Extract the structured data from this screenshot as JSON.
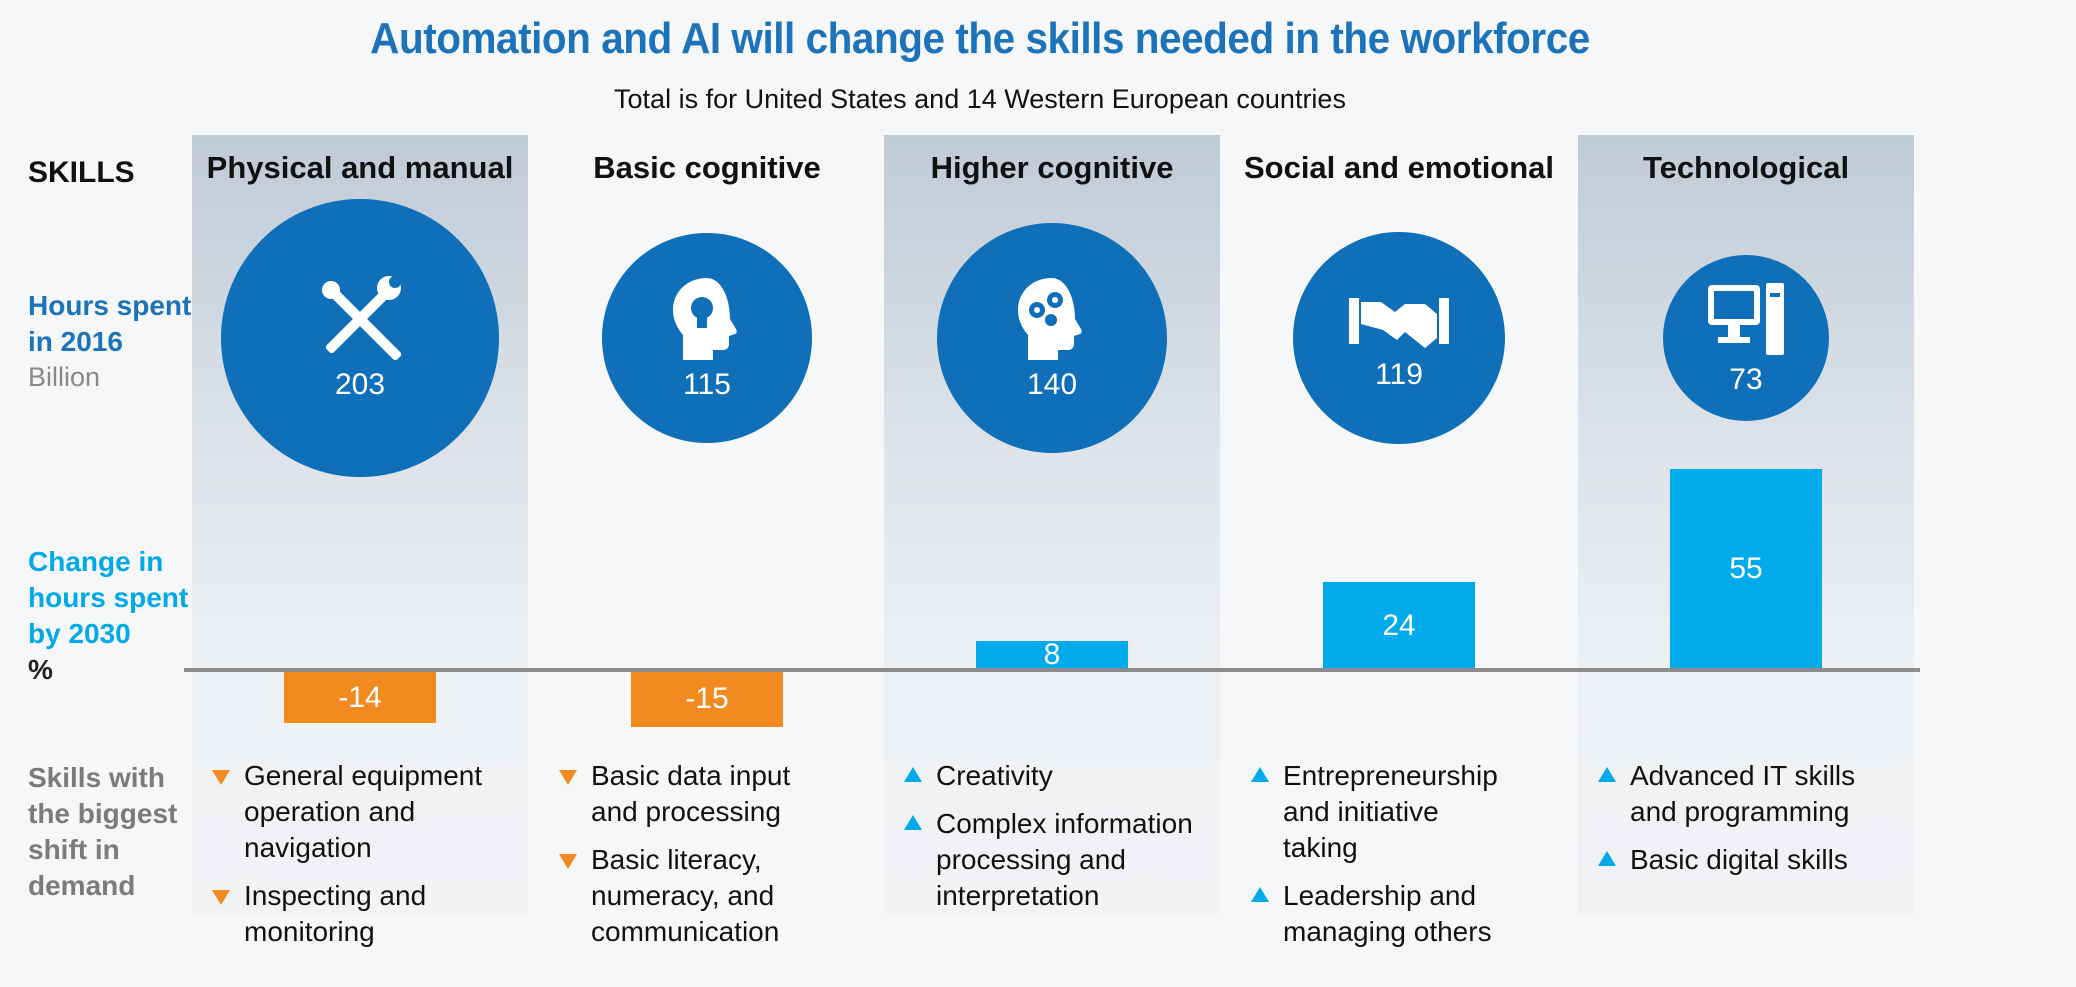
{
  "title": "Automation and AI will change the skills needed in the workforce",
  "subtitle": "Total is for United States and 14 Western European countries",
  "row_labels": {
    "skills": "SKILLS",
    "hours_line1": "Hours spent,",
    "hours_line2": "in 2016",
    "hours_unit": "Billion",
    "change_line1": "Change in",
    "change_line2": "hours spent",
    "change_line3": "by 2030",
    "change_unit": "%",
    "shift_line1": "Skills with",
    "shift_line2": "the biggest",
    "shift_line3": "shift in",
    "shift_line4": "demand"
  },
  "colors": {
    "title": "#1d73b9",
    "circle": "#0f6fb9",
    "positive": "#00aaeb",
    "negative": "#f28a20"
  },
  "chart_data": {
    "type": "bar",
    "title": "Automation and AI will change the skills needed in the workforce",
    "subtitle": "Total is for United States and 14 Western European countries",
    "categories": [
      "Physical and manual",
      "Basic cognitive",
      "Higher cognitive",
      "Social and emotional",
      "Technological"
    ],
    "series": [
      {
        "name": "Hours spent, in 2016",
        "unit": "Billion",
        "values": [
          203,
          115,
          140,
          119,
          73
        ]
      },
      {
        "name": "Change in hours spent by 2030",
        "unit": "%",
        "values": [
          -14,
          -15,
          8,
          24,
          55
        ]
      }
    ],
    "icons": [
      "tools-icon",
      "head-lightbulb-icon",
      "head-gears-icon",
      "handshake-icon",
      "computer-icon"
    ],
    "shifts": [
      {
        "direction": "down",
        "lines": [
          [
            "General equipment",
            "operation and navigation"
          ],
          [
            "Inspecting and",
            "monitoring"
          ]
        ]
      },
      {
        "direction": "down",
        "lines": [
          [
            "Basic data input",
            "and processing"
          ],
          [
            "Basic literacy,",
            "numeracy, and",
            "communication"
          ]
        ]
      },
      {
        "direction": "up",
        "lines": [
          [
            "Creativity"
          ],
          [
            "Complex information",
            "processing and",
            "interpretation"
          ]
        ]
      },
      {
        "direction": "up",
        "lines": [
          [
            "Entrepreneurship",
            "and initiative",
            "taking"
          ],
          [
            "Leadership and",
            "managing others"
          ]
        ]
      },
      {
        "direction": "up",
        "lines": [
          [
            "Advanced IT skills",
            "and programming"
          ],
          [
            "Basic digital skills"
          ]
        ]
      }
    ]
  }
}
